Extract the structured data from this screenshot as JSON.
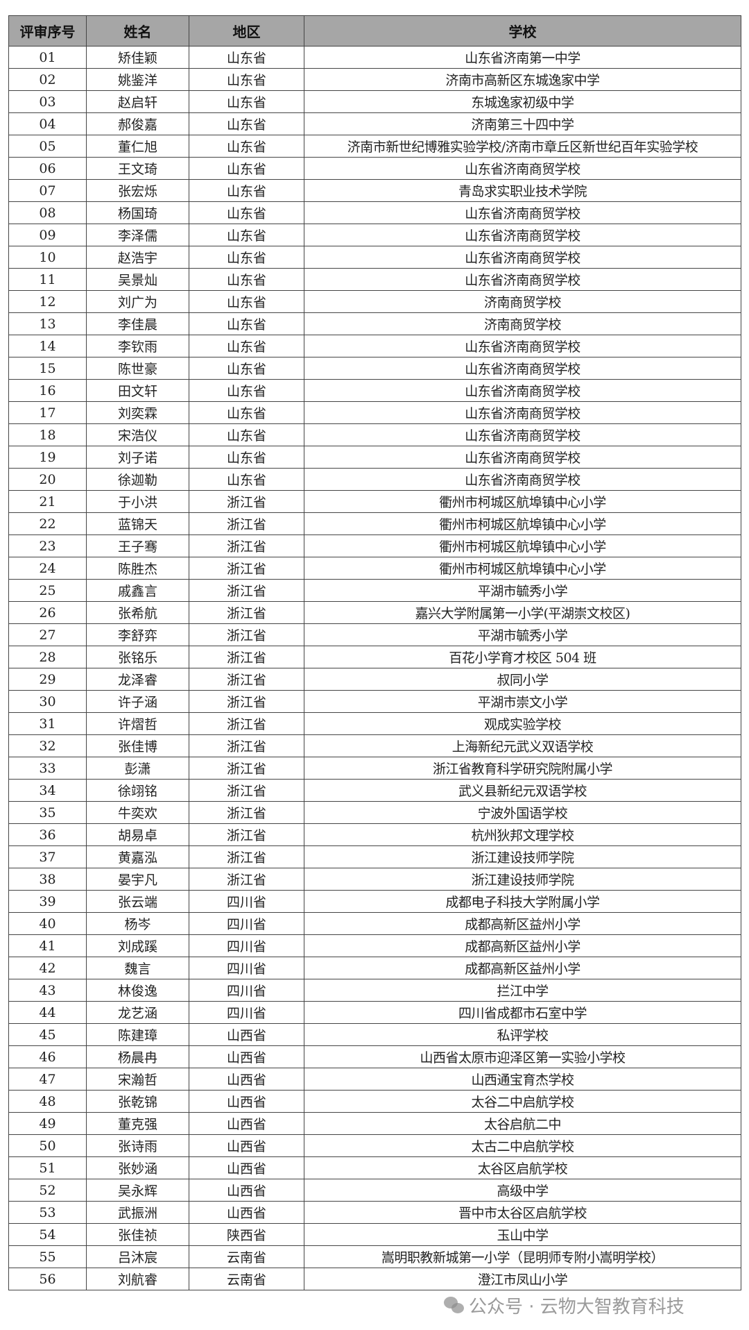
{
  "headers": [
    "评审序号",
    "姓名",
    "地区",
    "学校"
  ],
  "rows": [
    [
      "01",
      "矫佳颖",
      "山东省",
      "山东省济南第一中学"
    ],
    [
      "02",
      "姚鉴洋",
      "山东省",
      "济南市高新区东城逸家中学"
    ],
    [
      "03",
      "赵启轩",
      "山东省",
      "东城逸家初级中学"
    ],
    [
      "04",
      "郝俊嘉",
      "山东省",
      "济南第三十四中学"
    ],
    [
      "05",
      "董仁旭",
      "山东省",
      "济南市新世纪博雅实验学校/济南市章丘区新世纪百年实验学校"
    ],
    [
      "06",
      "王文琦",
      "山东省",
      "山东省济南商贸学校"
    ],
    [
      "07",
      "张宏烁",
      "山东省",
      "青岛求实职业技术学院"
    ],
    [
      "08",
      "杨国琦",
      "山东省",
      "山东省济南商贸学校"
    ],
    [
      "09",
      "李泽儒",
      "山东省",
      "山东省济南商贸学校"
    ],
    [
      "10",
      "赵浩宇",
      "山东省",
      "山东省济南商贸学校"
    ],
    [
      "11",
      "吴景灿",
      "山东省",
      "山东省济南商贸学校"
    ],
    [
      "12",
      "刘广为",
      "山东省",
      "济南商贸学校"
    ],
    [
      "13",
      "李佳晨",
      "山东省",
      "济南商贸学校"
    ],
    [
      "14",
      "李钦雨",
      "山东省",
      "山东省济南商贸学校"
    ],
    [
      "15",
      "陈世豪",
      "山东省",
      "山东省济南商贸学校"
    ],
    [
      "16",
      "田文轩",
      "山东省",
      "山东省济南商贸学校"
    ],
    [
      "17",
      "刘奕霖",
      "山东省",
      "山东省济南商贸学校"
    ],
    [
      "18",
      "宋浩仪",
      "山东省",
      "山东省济南商贸学校"
    ],
    [
      "19",
      "刘子诺",
      "山东省",
      "山东省济南商贸学校"
    ],
    [
      "20",
      "徐迦勒",
      "山东省",
      "山东省济南商贸学校"
    ],
    [
      "21",
      "于小洪",
      "浙江省",
      "衢州市柯城区航埠镇中心小学"
    ],
    [
      "22",
      "蓝锦天",
      "浙江省",
      "衢州市柯城区航埠镇中心小学"
    ],
    [
      "23",
      "王子骞",
      "浙江省",
      "衢州市柯城区航埠镇中心小学"
    ],
    [
      "24",
      "陈胜杰",
      "浙江省",
      "衢州市柯城区航埠镇中心小学"
    ],
    [
      "25",
      "戚鑫言",
      "浙江省",
      "平湖市毓秀小学"
    ],
    [
      "26",
      "张希航",
      "浙江省",
      "嘉兴大学附属第一小学(平湖崇文校区)"
    ],
    [
      "27",
      "李舒弈",
      "浙江省",
      "平湖市毓秀小学"
    ],
    [
      "28",
      "张铭乐",
      "浙江省",
      "百花小学育才校区 504 班"
    ],
    [
      "29",
      "龙泽睿",
      "浙江省",
      "叔同小学"
    ],
    [
      "30",
      "许子涵",
      "浙江省",
      "平湖市崇文小学"
    ],
    [
      "31",
      "许熠哲",
      "浙江省",
      "观成实验学校"
    ],
    [
      "32",
      "张佳博",
      "浙江省",
      "上海新纪元武义双语学校"
    ],
    [
      "33",
      "彭潇",
      "浙江省",
      "浙江省教育科学研究院附属小学"
    ],
    [
      "34",
      "徐翊铭",
      "浙江省",
      "武义县新纪元双语学校"
    ],
    [
      "35",
      "牛奕欢",
      "浙江省",
      "宁波外国语学校"
    ],
    [
      "36",
      "胡易卓",
      "浙江省",
      "杭州狄邦文理学校"
    ],
    [
      "37",
      "黄嘉泓",
      "浙江省",
      "浙江建设技师学院"
    ],
    [
      "38",
      "晏宇凡",
      "浙江省",
      "浙江建设技师学院"
    ],
    [
      "39",
      "张云端",
      "四川省",
      "成都电子科技大学附属小学"
    ],
    [
      "40",
      "杨岑",
      "四川省",
      "成都高新区益州小学"
    ],
    [
      "41",
      "刘成蹊",
      "四川省",
      "成都高新区益州小学"
    ],
    [
      "42",
      "魏言",
      "四川省",
      "成都高新区益州小学"
    ],
    [
      "43",
      "林俊逸",
      "四川省",
      "拦江中学"
    ],
    [
      "44",
      "龙艺涵",
      "四川省",
      "四川省成都市石室中学"
    ],
    [
      "45",
      "陈建璋",
      "山西省",
      "私评学校"
    ],
    [
      "46",
      "杨晨冉",
      "山西省",
      "山西省太原市迎泽区第一实验小学校"
    ],
    [
      "47",
      "宋瀚哲",
      "山西省",
      "山西通宝育杰学校"
    ],
    [
      "48",
      "张乾锦",
      "山西省",
      "太谷二中启航学校"
    ],
    [
      "49",
      "董克强",
      "山西省",
      "太谷启航二中"
    ],
    [
      "50",
      "张诗雨",
      "山西省",
      "太古二中启航学校"
    ],
    [
      "51",
      "张妙涵",
      "山西省",
      "太谷区启航学校"
    ],
    [
      "52",
      "吴永辉",
      "山西省",
      "高级中学"
    ],
    [
      "53",
      "武振洲",
      "山西省",
      "晋中市太谷区启航学校"
    ],
    [
      "54",
      "张佳祯",
      "陕西省",
      "玉山中学"
    ],
    [
      "55",
      "吕沐宸",
      "云南省",
      "嵩明职教新城第一小学（昆明师专附小嵩明学校）"
    ],
    [
      "56",
      "刘航睿",
      "云南省",
      "澄江市凤山小学"
    ]
  ],
  "watermark": {
    "text": "公众号 · 云物大智教育科技",
    "icon": "wechat-icon"
  },
  "colors": {
    "header_bg": "#a6a6a6",
    "border": "#444444"
  }
}
